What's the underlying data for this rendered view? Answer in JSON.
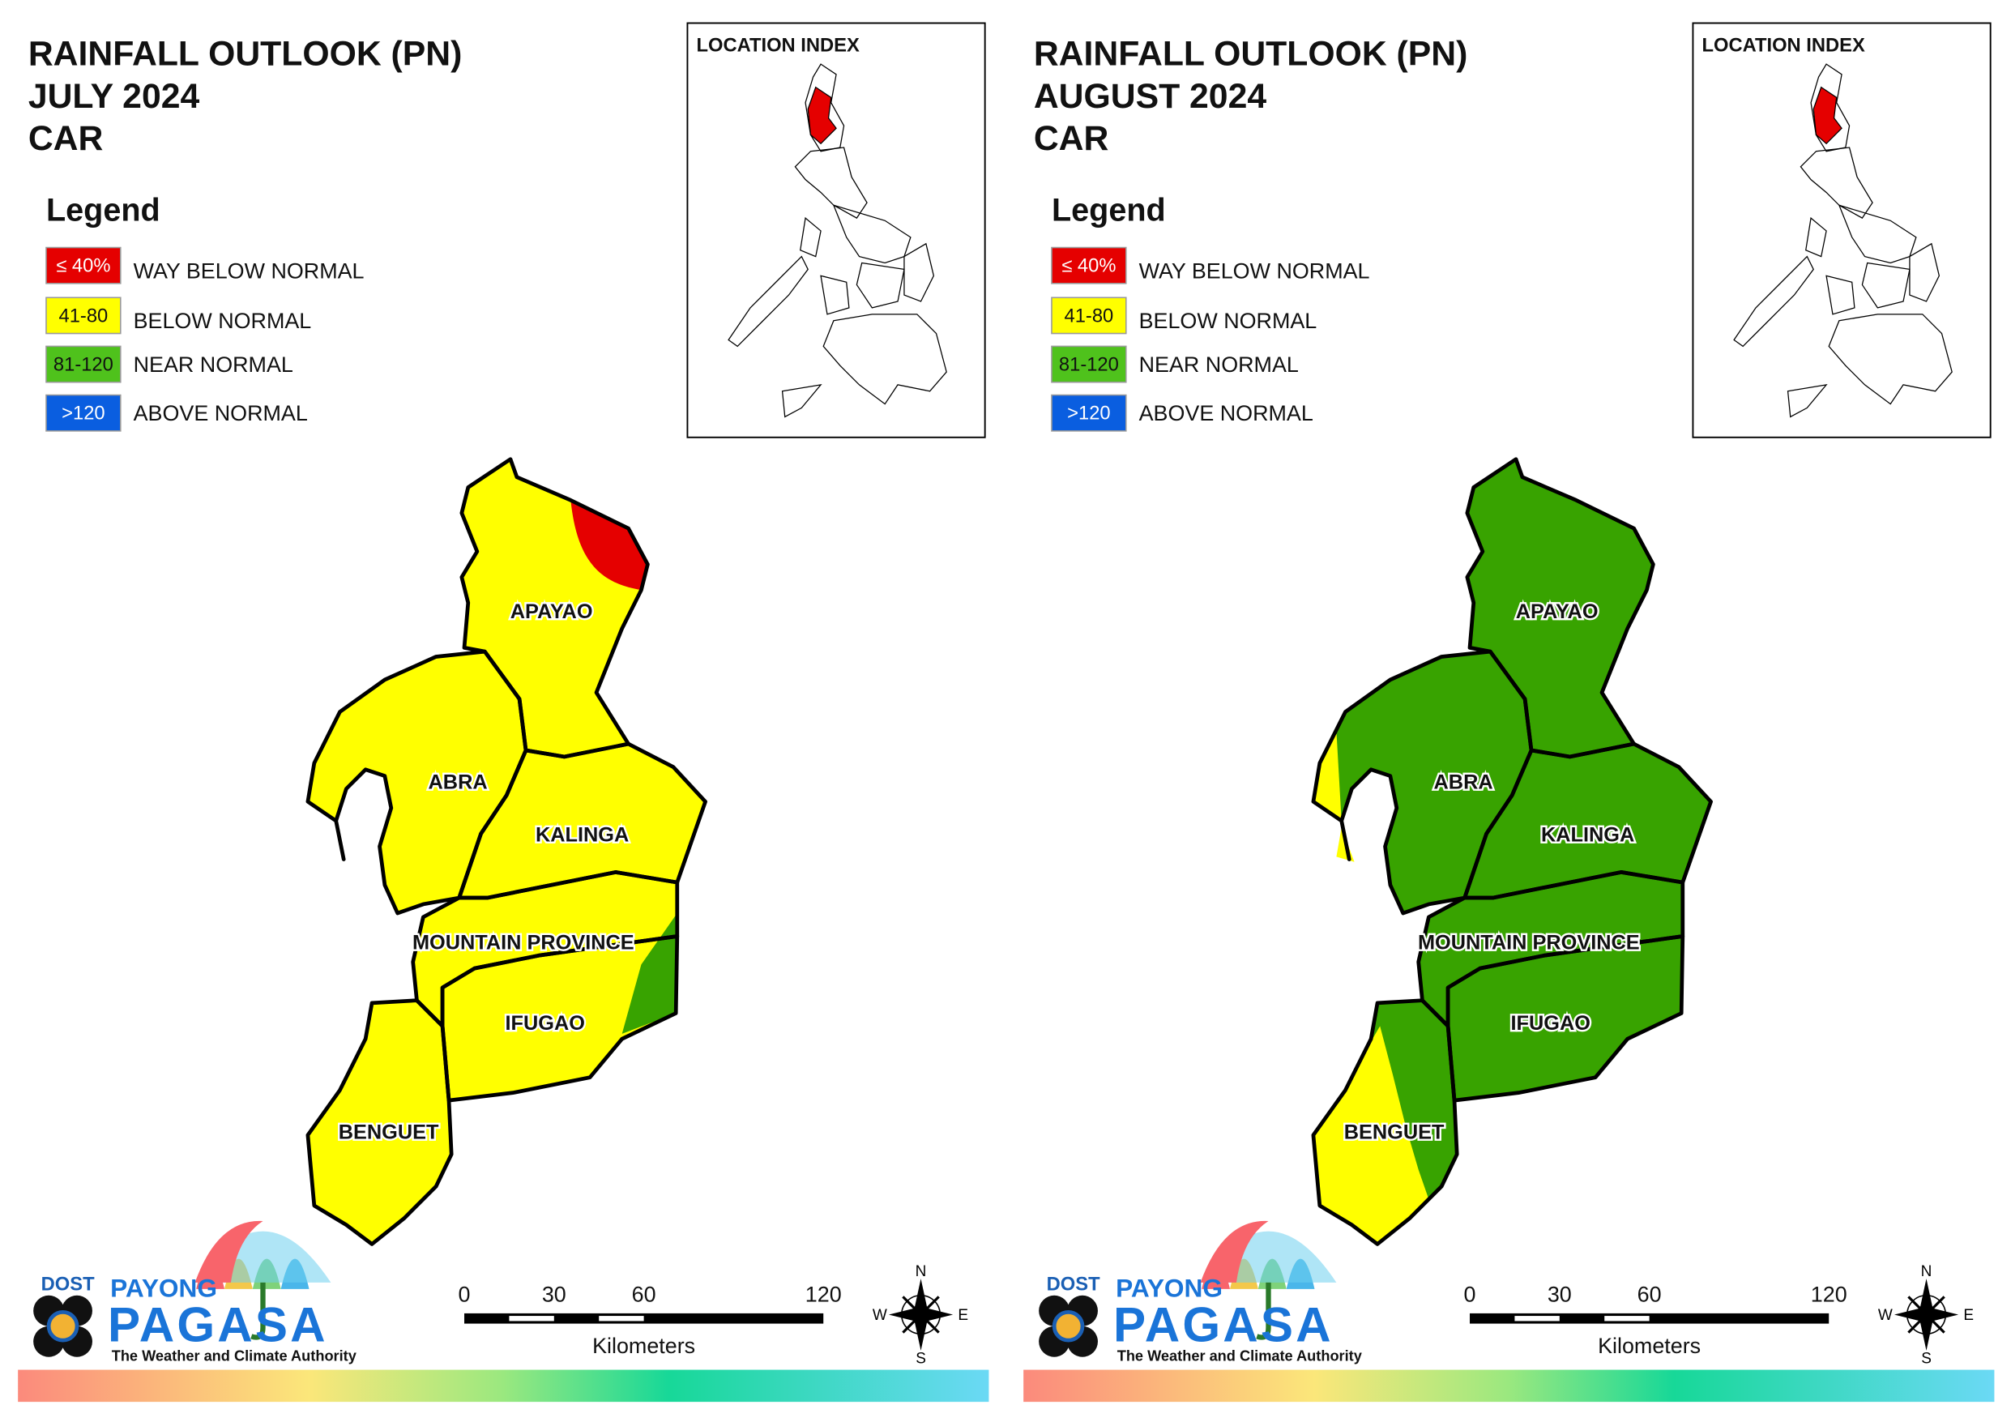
{
  "panels": [
    {
      "title": [
        "RAINFALL OUTLOOK (PN)",
        "JULY 2024",
        "CAR"
      ],
      "legend": {
        "title": "Legend",
        "items": [
          {
            "swatch": "≤ 40%",
            "label": "WAY BELOW NORMAL",
            "color": "#e50000"
          },
          {
            "swatch": "41-80",
            "label": "BELOW NORMAL",
            "color": "#ffff00"
          },
          {
            "swatch": "81-120",
            "label": "NEAR NORMAL",
            "color": "#4fc21c"
          },
          {
            "swatch": ">120",
            "label": "ABOVE NORMAL",
            "color": "#0a5ee0"
          }
        ]
      },
      "location_index": "LOCATION INDEX",
      "provinces": [
        {
          "name": "APAYAO",
          "color": "#ffff00"
        },
        {
          "name": "ABRA",
          "color": "#ffff00"
        },
        {
          "name": "KALINGA",
          "color": "#ffff00"
        },
        {
          "name": "MOUNTAIN PROVINCE",
          "color": "#ffff00"
        },
        {
          "name": "IFUGAO",
          "color": "#ffff00"
        },
        {
          "name": "BENGUET",
          "color": "#ffff00"
        }
      ],
      "scale": {
        "ticks": [
          0,
          30,
          60,
          120
        ],
        "unit": "Kilometers"
      },
      "compass": {
        "n": "N",
        "e": "E",
        "s": "S",
        "w": "W"
      },
      "logo": {
        "dost": "DOST",
        "payong": "PAYONG",
        "pagasa": "PAGASA",
        "tagline": "The Weather and Climate Authority"
      }
    },
    {
      "title": [
        "RAINFALL OUTLOOK (PN)",
        "AUGUST 2024",
        "CAR"
      ],
      "legend": {
        "title": "Legend",
        "items": [
          {
            "swatch": "≤ 40%",
            "label": "WAY BELOW NORMAL",
            "color": "#e50000"
          },
          {
            "swatch": "41-80",
            "label": "BELOW NORMAL",
            "color": "#ffff00"
          },
          {
            "swatch": "81-120",
            "label": "NEAR NORMAL",
            "color": "#4fc21c"
          },
          {
            "swatch": ">120",
            "label": "ABOVE NORMAL",
            "color": "#0a5ee0"
          }
        ]
      },
      "location_index": "LOCATION INDEX",
      "provinces": [
        {
          "name": "APAYAO",
          "color": "#38a300"
        },
        {
          "name": "ABRA",
          "color": "#38a300"
        },
        {
          "name": "KALINGA",
          "color": "#38a300"
        },
        {
          "name": "MOUNTAIN PROVINCE",
          "color": "#38a300"
        },
        {
          "name": "IFUGAO",
          "color": "#38a300"
        },
        {
          "name": "BENGUET",
          "color": "#38a300"
        }
      ],
      "scale": {
        "ticks": [
          0,
          30,
          60,
          120
        ],
        "unit": "Kilometers"
      },
      "compass": {
        "n": "N",
        "e": "E",
        "s": "S",
        "w": "W"
      },
      "logo": {
        "dost": "DOST",
        "payong": "PAYONG",
        "pagasa": "PAGASA",
        "tagline": "The Weather and Climate Authority"
      }
    }
  ]
}
